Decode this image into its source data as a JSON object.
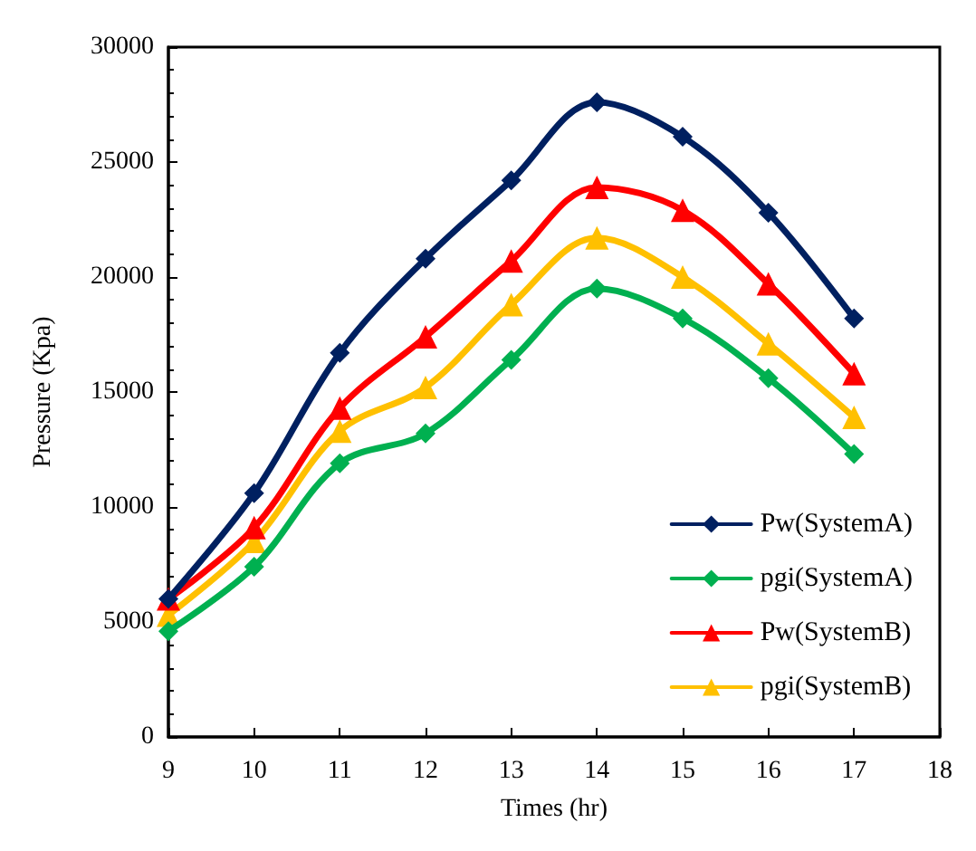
{
  "chart_data": {
    "type": "line",
    "xlabel": "Times (hr)",
    "ylabel": "Pressure (Kpa)",
    "x": [
      9,
      10,
      11,
      12,
      13,
      14,
      15,
      16,
      17
    ],
    "xlim": [
      9,
      18
    ],
    "xticks": [
      9,
      10,
      11,
      12,
      13,
      14,
      15,
      16,
      17,
      18
    ],
    "ylim": [
      0,
      30000
    ],
    "yticks": [
      0,
      5000,
      10000,
      15000,
      20000,
      25000,
      30000
    ],
    "grid": false,
    "legend": "bottom right",
    "line_style": "solid",
    "series": [
      {
        "name": "Pw(SystemA)",
        "color": "#002060",
        "marker": "diamond",
        "values": [
          6000,
          10600,
          16700,
          20800,
          24200,
          27600,
          26100,
          22800,
          18200
        ]
      },
      {
        "name": "pgi(SystemA)",
        "color": "#00b050",
        "marker": "diamond",
        "values": [
          4600,
          7400,
          11900,
          13200,
          16400,
          19500,
          18200,
          15600,
          12300
        ]
      },
      {
        "name": "Pw(SystemB)",
        "color": "#ff0000",
        "marker": "triangle",
        "values": [
          6000,
          9100,
          14300,
          17400,
          20700,
          23900,
          22900,
          19700,
          15800
        ]
      },
      {
        "name": "pgi(SystemB)",
        "color": "#ffc000",
        "marker": "triangle",
        "values": [
          5300,
          8500,
          13300,
          15200,
          18800,
          21700,
          20000,
          17100,
          13900
        ]
      }
    ]
  }
}
